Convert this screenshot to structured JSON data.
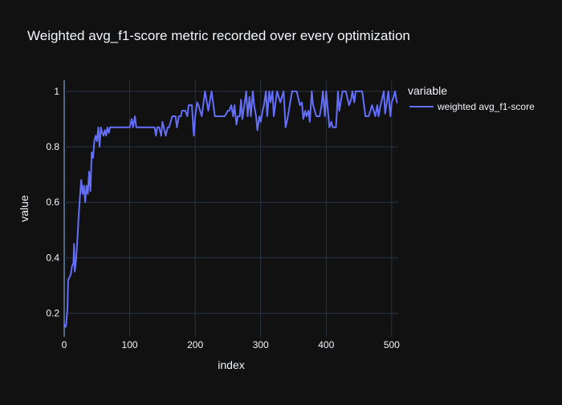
{
  "chart_data": {
    "type": "line",
    "title": "Weighted avg_f1-score metric recorded over every optimization",
    "xlabel": "index",
    "ylabel": "value",
    "xlim": [
      0,
      510
    ],
    "ylim": [
      0.115,
      1.04
    ],
    "grid": true,
    "legend_placement": "top-right",
    "xticks": [
      0,
      100,
      200,
      300,
      400,
      500
    ],
    "yticks": [
      0.2,
      0.4,
      0.6,
      0.8,
      1.0
    ],
    "xtick_labels": [
      "0",
      "100",
      "200",
      "300",
      "400",
      "500"
    ],
    "ytick_labels": [
      "0.2",
      "0.4",
      "0.6",
      "0.8",
      "1"
    ],
    "legend_title": "variable",
    "series": [
      {
        "name": "weighted avg_f1-score",
        "color": "#636efa",
        "x": [
          0,
          2,
          3,
          5,
          6,
          8,
          10,
          12,
          14,
          15,
          16,
          18,
          20,
          22,
          24,
          26,
          28,
          30,
          32,
          34,
          36,
          38,
          40,
          42,
          44,
          46,
          48,
          50,
          52,
          54,
          56,
          58,
          60,
          62,
          64,
          66,
          68,
          70,
          75,
          80,
          85,
          90,
          95,
          100,
          103,
          105,
          108,
          110,
          115,
          120,
          125,
          130,
          135,
          138,
          140,
          142,
          145,
          148,
          150,
          152,
          155,
          158,
          160,
          165,
          170,
          172,
          175,
          178,
          180,
          185,
          188,
          190,
          195,
          197,
          198,
          200,
          203,
          205,
          210,
          215,
          220,
          225,
          230,
          235,
          240,
          245,
          250,
          252,
          255,
          258,
          260,
          263,
          265,
          268,
          270,
          272,
          275,
          278,
          280,
          283,
          285,
          288,
          290,
          293,
          295,
          298,
          300,
          303,
          305,
          308,
          310,
          313,
          315,
          318,
          320,
          325,
          330,
          335,
          338,
          340,
          343,
          345,
          348,
          350,
          355,
          360,
          363,
          365,
          368,
          370,
          373,
          375,
          378,
          380,
          385,
          390,
          393,
          395,
          398,
          400,
          403,
          405,
          408,
          410,
          415,
          418,
          420,
          425,
          430,
          435,
          438,
          440,
          443,
          445,
          450,
          455,
          460,
          465,
          470,
          475,
          478,
          480,
          483,
          485,
          488,
          490,
          495,
          498,
          500,
          503,
          505,
          508
        ],
        "values": [
          0.16,
          0.15,
          0.16,
          0.22,
          0.32,
          0.33,
          0.34,
          0.37,
          0.38,
          0.45,
          0.35,
          0.39,
          0.46,
          0.55,
          0.62,
          0.68,
          0.63,
          0.66,
          0.6,
          0.66,
          0.63,
          0.71,
          0.64,
          0.78,
          0.76,
          0.82,
          0.84,
          0.82,
          0.87,
          0.8,
          0.87,
          0.85,
          0.84,
          0.86,
          0.84,
          0.87,
          0.85,
          0.87,
          0.87,
          0.87,
          0.87,
          0.87,
          0.87,
          0.87,
          0.9,
          0.87,
          0.91,
          0.87,
          0.87,
          0.87,
          0.87,
          0.87,
          0.87,
          0.87,
          0.84,
          0.87,
          0.87,
          0.84,
          0.89,
          0.87,
          0.84,
          0.87,
          0.87,
          0.91,
          0.91,
          0.87,
          0.91,
          0.91,
          0.93,
          0.93,
          0.91,
          0.95,
          0.95,
          0.87,
          0.84,
          0.91,
          0.96,
          0.95,
          0.91,
          1.0,
          0.93,
          1.0,
          0.91,
          0.91,
          0.91,
          0.91,
          0.93,
          0.93,
          0.95,
          0.91,
          0.95,
          0.88,
          0.91,
          0.91,
          0.97,
          0.9,
          0.95,
          1.0,
          0.91,
          0.98,
          0.91,
          1.0,
          0.95,
          0.91,
          0.86,
          0.91,
          0.89,
          0.93,
          0.95,
          1.0,
          0.91,
          1.0,
          0.96,
          1.0,
          0.91,
          1.0,
          0.96,
          1.0,
          0.87,
          0.89,
          0.93,
          0.96,
          1.0,
          1.0,
          1.0,
          0.95,
          0.96,
          0.9,
          0.93,
          0.91,
          0.93,
          0.89,
          1.0,
          0.95,
          0.91,
          0.91,
          0.95,
          1.0,
          0.91,
          1.0,
          0.92,
          0.87,
          0.89,
          0.87,
          0.87,
          1.0,
          0.93,
          1.0,
          1.0,
          0.95,
          0.97,
          1.0,
          0.96,
          1.0,
          1.0,
          1.0,
          0.91,
          0.91,
          0.95,
          0.91,
          0.95,
          0.91,
          0.95,
          0.97,
          1.0,
          0.92,
          1.0,
          0.91,
          0.96,
          0.98,
          1.0,
          0.96
        ]
      }
    ]
  }
}
